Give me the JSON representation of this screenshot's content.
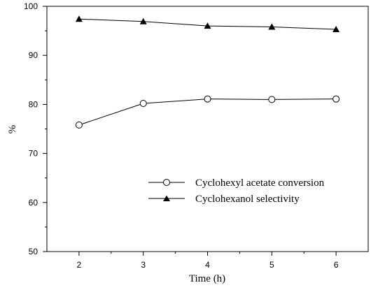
{
  "chart_data": {
    "type": "line",
    "title": "",
    "xlabel": "Time (h)",
    "ylabel": "%",
    "x": [
      2,
      3,
      4,
      5,
      6
    ],
    "xlim": [
      1.5,
      6.5
    ],
    "ylim": [
      50,
      100
    ],
    "x_ticks": [
      2,
      3,
      4,
      5,
      6
    ],
    "y_ticks": [
      50,
      60,
      70,
      80,
      90,
      100
    ],
    "grid": false,
    "legend_position": "center-right",
    "series": [
      {
        "name": "Cyclohexyl acetate conversion",
        "marker": "open-circle",
        "color": "#000000",
        "values": [
          75.8,
          80.2,
          81.1,
          81.0,
          81.1
        ]
      },
      {
        "name": "Cyclohexanol selectivity",
        "marker": "filled-triangle",
        "color": "#000000",
        "values": [
          97.4,
          96.9,
          96.0,
          95.8,
          95.3
        ]
      }
    ]
  }
}
